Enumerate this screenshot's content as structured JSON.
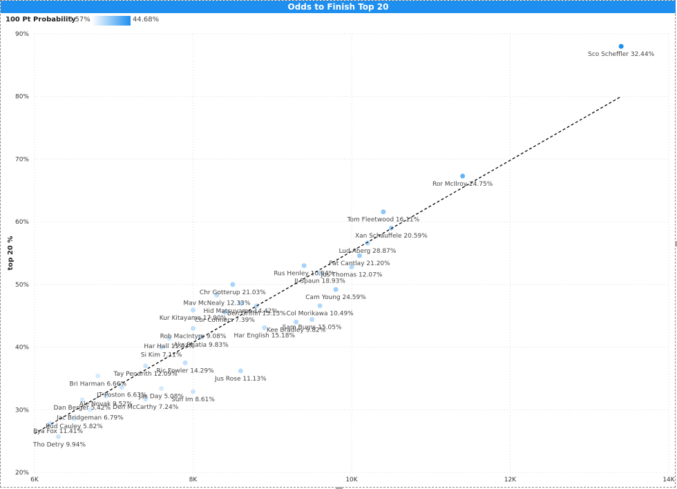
{
  "chart_data": {
    "type": "scatter",
    "title": "Odds to Finish Top 20",
    "xlabel": "",
    "ylabel": "top 20 %",
    "xlim": [
      6000,
      14000
    ],
    "ylim": [
      20,
      90
    ],
    "x_ticks": [
      6000,
      8000,
      10000,
      12000,
      14000
    ],
    "x_tick_labels": [
      "6K",
      "8K",
      "10K",
      "12K",
      "14K"
    ],
    "y_ticks": [
      20,
      30,
      40,
      50,
      60,
      70,
      80,
      90
    ],
    "y_tick_labels": [
      "20%",
      "30%",
      "40%",
      "50%",
      "60%",
      "70%",
      "80%",
      "90%"
    ],
    "grid": true,
    "trendline": {
      "style": "dashed",
      "x": [
        6000,
        13400
      ],
      "y": [
        26.2,
        80
      ]
    },
    "color_legend": {
      "label": "100 Pt Probability",
      "min_label": "0.57%",
      "max_label": "44.68%",
      "min": 0.57,
      "max": 44.68,
      "color_low": "#ffffff",
      "color_high": "#1e8fef"
    },
    "points": [
      {
        "label": "Sco Scheffler 32.44%",
        "x": 13400,
        "y": 88,
        "c": 44.68
      },
      {
        "label": "Ror McIlroy 24.75%",
        "x": 11400,
        "y": 67.3,
        "c": 22
      },
      {
        "label": "Tom Fleetwood 16.11%",
        "x": 10400,
        "y": 61.6,
        "c": 12
      },
      {
        "label": "Xan Schauffele 20.59%",
        "x": 10500,
        "y": 59.0,
        "c": 8
      },
      {
        "label": "Lud Aberg 28.87%",
        "x": 10200,
        "y": 56.6,
        "c": 6
      },
      {
        "label": "Pat Cantlay 21.20%",
        "x": 10100,
        "y": 54.6,
        "c": 9
      },
      {
        "label": "Jus Thomas 12.07%",
        "x": 10000,
        "y": 52.8,
        "c": 5
      },
      {
        "label": "Rus Henley 10.94%",
        "x": 9400,
        "y": 53.0,
        "c": 7
      },
      {
        "label": "JJ Spaun 18.93%",
        "x": 9600,
        "y": 51.8,
        "c": 4
      },
      {
        "label": "Cam Young 24.59%",
        "x": 9800,
        "y": 49.2,
        "c": 8
      },
      {
        "label": "Col Morikawa 10.49%",
        "x": 9600,
        "y": 46.6,
        "c": 5
      },
      {
        "label": "Chr Gotterup 21.03%",
        "x": 8500,
        "y": 50.0,
        "c": 7
      },
      {
        "label": "Mav McNealy 12.33%",
        "x": 8300,
        "y": 48.3,
        "c": 3
      },
      {
        "label": "Hid Matsuyama 14.42%",
        "x": 8600,
        "y": 47.0,
        "c": 4
      },
      {
        "label": "Ben Griffin 15.13%",
        "x": 8800,
        "y": 46.6,
        "c": 4
      },
      {
        "label": "Kur Kitayama 17.90%",
        "x": 8000,
        "y": 45.9,
        "c": 3
      },
      {
        "label": "Cor Conners 7.39%",
        "x": 8400,
        "y": 45.6,
        "c": 6
      },
      {
        "label": "Kee Bradley 9.82%",
        "x": 9300,
        "y": 44.0,
        "c": 5
      },
      {
        "label": "Har English 15.18%",
        "x": 8900,
        "y": 43.1,
        "c": 3
      },
      {
        "label": "Sam Burns 15.05%",
        "x": 9500,
        "y": 44.4,
        "c": 4
      },
      {
        "label": "Rob MacIntyre 9.08%",
        "x": 8000,
        "y": 43.0,
        "c": 3
      },
      {
        "label": "Har Hall 11.03%",
        "x": 7700,
        "y": 41.4,
        "c": 2
      },
      {
        "label": "Aks Bhatia 9.83%",
        "x": 8100,
        "y": 41.6,
        "c": 3
      },
      {
        "label": "Si Kim 7.11%",
        "x": 7600,
        "y": 40.0,
        "c": 2
      },
      {
        "label": "Tay Pendrith 12.09%",
        "x": 7400,
        "y": 37.0,
        "c": 2
      },
      {
        "label": "Ric Fowler 14.29%",
        "x": 7900,
        "y": 37.5,
        "c": 3
      },
      {
        "label": "Jus Rose 11.13%",
        "x": 8600,
        "y": 36.2,
        "c": 4
      },
      {
        "label": "Bri Harman 6.66%",
        "x": 6800,
        "y": 35.4,
        "c": 1
      },
      {
        "label": "JT Poston 6.63%",
        "x": 7100,
        "y": 33.6,
        "c": 2
      },
      {
        "label": "Jas Day 5.08%",
        "x": 7600,
        "y": 33.4,
        "c": 1
      },
      {
        "label": "Sun Im 8.61%",
        "x": 8000,
        "y": 32.9,
        "c": 2
      },
      {
        "label": "Ale Novak 9.52%",
        "x": 6900,
        "y": 32.2,
        "c": 2
      },
      {
        "label": "Dan Berger 5.42%",
        "x": 6600,
        "y": 31.6,
        "c": 1
      },
      {
        "label": "Den McCarthy 7.24%",
        "x": 7400,
        "y": 31.7,
        "c": 2
      },
      {
        "label": "Jac Bridgeman 6.79%",
        "x": 6700,
        "y": 30.0,
        "c": 1
      },
      {
        "label": "Bud Cauley 5.82%",
        "x": 6500,
        "y": 28.6,
        "c": 1
      },
      {
        "label": "Rya Fox 11.41%",
        "x": 6200,
        "y": 27.8,
        "c": 2
      },
      {
        "label": "Tho Detry 9.94%",
        "x": 6300,
        "y": 25.7,
        "c": 2
      }
    ]
  }
}
